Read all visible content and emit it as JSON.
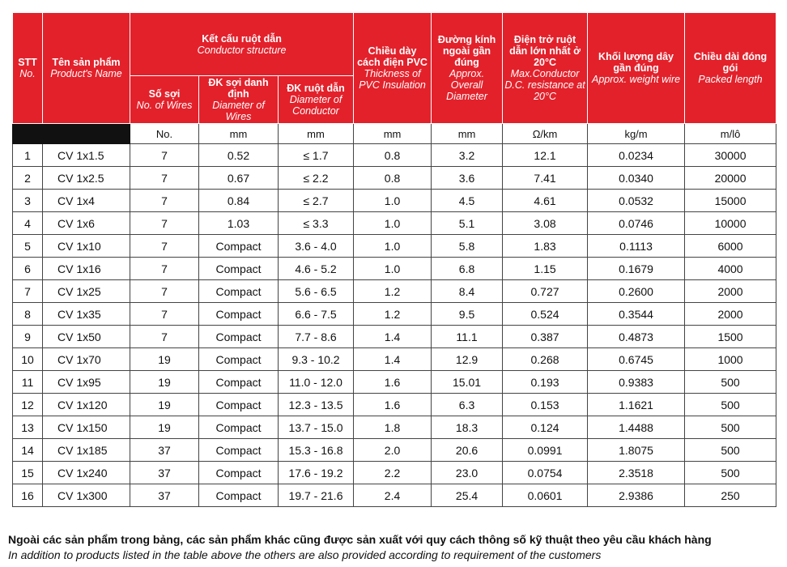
{
  "table": {
    "headers": {
      "stt": {
        "vi": "STT",
        "en": "No."
      },
      "name": {
        "vi": "Tên sản phẩm",
        "en": "Product's Name"
      },
      "group": {
        "vi": "Kết cấu ruột dẫn",
        "en": "Conductor structure"
      },
      "wires": {
        "vi": "Số sợi",
        "en": "No. of Wires"
      },
      "wire_dia": {
        "vi": "ĐK sợi danh định",
        "en": "Diameter of Wires"
      },
      "cond_dia": {
        "vi": "ĐK ruột dẫn",
        "en": "Diameter of Conductor"
      },
      "insulation": {
        "vi": "Chiều dày cách điện PVC",
        "en": "Thickness of PVC Insulation"
      },
      "overall": {
        "vi": "Đường kính ngoài gần đúng",
        "en": "Approx. Overall Diameter"
      },
      "resistance": {
        "vi": "Điện trở ruột dẫn lớn nhất ở 20°C",
        "en": "Max.Conductor D.C. resistance at 20°C"
      },
      "weight": {
        "vi": "Khối lượng dây gần đúng",
        "en": "Approx. weight wire"
      },
      "length": {
        "vi": "Chiều dài đóng gói",
        "en": "Packed length"
      }
    },
    "units": [
      "No.",
      "mm",
      "mm",
      "mm",
      "mm",
      "Ω/km",
      "kg/m",
      "m/lô"
    ],
    "rows": [
      [
        "1",
        "CV 1x1.5",
        "7",
        "0.52",
        "≤ 1.7",
        "0.8",
        "3.2",
        "12.1",
        "0.0234",
        "30000"
      ],
      [
        "2",
        "CV 1x2.5",
        "7",
        "0.67",
        "≤ 2.2",
        "0.8",
        "3.6",
        "7.41",
        "0.0340",
        "20000"
      ],
      [
        "3",
        "CV 1x4",
        "7",
        "0.84",
        "≤ 2.7",
        "1.0",
        "4.5",
        "4.61",
        "0.0532",
        "15000"
      ],
      [
        "4",
        "CV 1x6",
        "7",
        "1.03",
        "≤ 3.3",
        "1.0",
        "5.1",
        "3.08",
        "0.0746",
        "10000"
      ],
      [
        "5",
        "CV 1x10",
        "7",
        "Compact",
        "3.6 - 4.0",
        "1.0",
        "5.8",
        "1.83",
        "0.1113",
        "6000"
      ],
      [
        "6",
        "CV 1x16",
        "7",
        "Compact",
        "4.6 - 5.2",
        "1.0",
        "6.8",
        "1.15",
        "0.1679",
        "4000"
      ],
      [
        "7",
        "CV 1x25",
        "7",
        "Compact",
        "5.6 - 6.5",
        "1.2",
        "8.4",
        "0.727",
        "0.2600",
        "2000"
      ],
      [
        "8",
        "CV 1x35",
        "7",
        "Compact",
        "6.6 - 7.5",
        "1.2",
        "9.5",
        "0.524",
        "0.3544",
        "2000"
      ],
      [
        "9",
        "CV 1x50",
        "7",
        "Compact",
        "7.7 - 8.6",
        "1.4",
        "11.1",
        "0.387",
        "0.4873",
        "1500"
      ],
      [
        "10",
        "CV 1x70",
        "19",
        "Compact",
        "9.3 - 10.2",
        "1.4",
        "12.9",
        "0.268",
        "0.6745",
        "1000"
      ],
      [
        "11",
        "CV 1x95",
        "19",
        "Compact",
        "11.0 - 12.0",
        "1.6",
        "15.01",
        "0.193",
        "0.9383",
        "500"
      ],
      [
        "12",
        "CV 1x120",
        "19",
        "Compact",
        "12.3 - 13.5",
        "1.6",
        "6.3",
        "0.153",
        "1.1621",
        "500"
      ],
      [
        "13",
        "CV 1x150",
        "19",
        "Compact",
        "13.7 - 15.0",
        "1.8",
        "18.3",
        "0.124",
        "1.4488",
        "500"
      ],
      [
        "14",
        "CV 1x185",
        "37",
        "Compact",
        "15.3 - 16.8",
        "2.0",
        "20.6",
        "0.0991",
        "1.8075",
        "500"
      ],
      [
        "15",
        "CV 1x240",
        "37",
        "Compact",
        "17.6 - 19.2",
        "2.2",
        "23.0",
        "0.0754",
        "2.3518",
        "500"
      ],
      [
        "16",
        "CV 1x300",
        "37",
        "Compact",
        "19.7 - 21.6",
        "2.4",
        "25.4",
        "0.0601",
        "2.9386",
        "250"
      ]
    ]
  },
  "footer": {
    "note_vi": "Ngoài các sản phẩm trong bảng, các sản phẩm khác cũng được sản xuất với quy cách thông số kỹ thuật  theo yêu cầu khách hàng",
    "note_en": "In addition to products listed in the table above the others are also provided according to requirement of the customers"
  }
}
